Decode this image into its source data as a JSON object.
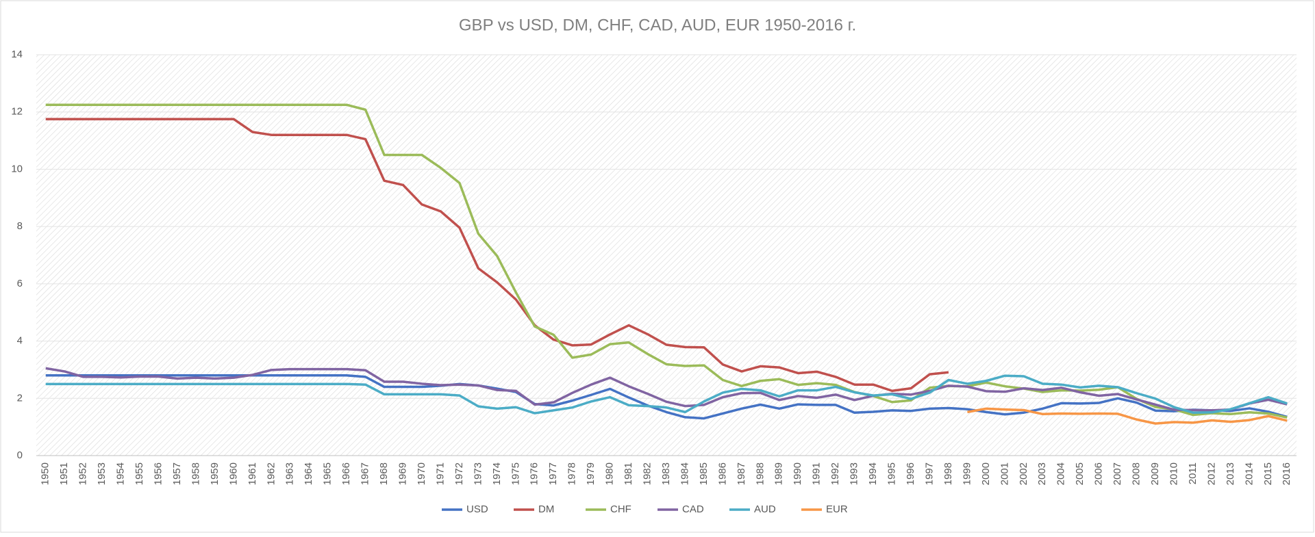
{
  "chart_data": {
    "type": "line",
    "title": "GBP vs USD, DM, CHF, CAD, AUD, EUR 1950-2016 г.",
    "categories": [
      "1950",
      "1951",
      "1952",
      "1953",
      "1954",
      "1955",
      "1956",
      "1957",
      "1958",
      "1959",
      "1960",
      "1961",
      "1962",
      "1963",
      "1964",
      "1965",
      "1966",
      "1967",
      "1968",
      "1969",
      "1970",
      "1971",
      "1972",
      "1973",
      "1974",
      "1975",
      "1976",
      "1977",
      "1978",
      "1979",
      "1980",
      "1981",
      "1982",
      "1983",
      "1984",
      "1985",
      "1986",
      "1987",
      "1988",
      "1989",
      "1990",
      "1991",
      "1992",
      "1993",
      "1994",
      "1995",
      "1996",
      "1997",
      "1998",
      "1999",
      "2000",
      "2001",
      "2002",
      "2003",
      "2004",
      "2005",
      "2006",
      "2007",
      "2008",
      "2009",
      "2010",
      "2011",
      "2012",
      "2013",
      "2014",
      "2015",
      "2016"
    ],
    "series": [
      {
        "name": "USD",
        "color": "#4472c4",
        "values": [
          2.8,
          2.8,
          2.8,
          2.8,
          2.8,
          2.8,
          2.8,
          2.8,
          2.8,
          2.8,
          2.8,
          2.8,
          2.8,
          2.8,
          2.8,
          2.8,
          2.8,
          2.75,
          2.4,
          2.4,
          2.4,
          2.44,
          2.5,
          2.45,
          2.34,
          2.22,
          1.8,
          1.75,
          1.92,
          2.12,
          2.33,
          2.03,
          1.75,
          1.52,
          1.34,
          1.3,
          1.47,
          1.64,
          1.78,
          1.64,
          1.79,
          1.77,
          1.77,
          1.5,
          1.53,
          1.58,
          1.56,
          1.64,
          1.66,
          1.62,
          1.52,
          1.44,
          1.5,
          1.64,
          1.83,
          1.82,
          1.84,
          2.0,
          1.85,
          1.57,
          1.55,
          1.6,
          1.58,
          1.56,
          1.65,
          1.53,
          1.35
        ]
      },
      {
        "name": "DM",
        "color": "#c0504d",
        "values": [
          11.75,
          11.75,
          11.75,
          11.75,
          11.75,
          11.75,
          11.75,
          11.75,
          11.75,
          11.75,
          11.75,
          11.3,
          11.2,
          11.2,
          11.2,
          11.2,
          11.2,
          11.05,
          9.6,
          9.45,
          8.77,
          8.53,
          7.96,
          6.54,
          6.05,
          5.45,
          4.55,
          4.05,
          3.85,
          3.88,
          4.23,
          4.55,
          4.24,
          3.87,
          3.79,
          3.78,
          3.18,
          2.94,
          3.12,
          3.08,
          2.88,
          2.93,
          2.75,
          2.48,
          2.48,
          2.26,
          2.35,
          2.84,
          2.91,
          null,
          null,
          null,
          null,
          null,
          null,
          null,
          null,
          null,
          null,
          null,
          null,
          null,
          null,
          null,
          null,
          null,
          null
        ]
      },
      {
        "name": "CHF",
        "color": "#9bbb59",
        "values": [
          12.25,
          12.25,
          12.25,
          12.25,
          12.25,
          12.25,
          12.25,
          12.25,
          12.25,
          12.25,
          12.25,
          12.25,
          12.25,
          12.25,
          12.25,
          12.25,
          12.25,
          12.08,
          10.5,
          10.5,
          10.5,
          10.05,
          9.52,
          7.75,
          6.97,
          5.7,
          4.51,
          4.22,
          3.42,
          3.53,
          3.89,
          3.95,
          3.55,
          3.19,
          3.13,
          3.15,
          2.64,
          2.43,
          2.61,
          2.67,
          2.47,
          2.53,
          2.47,
          2.22,
          2.08,
          1.87,
          1.93,
          2.37,
          2.43,
          2.42,
          2.55,
          2.42,
          2.34,
          2.22,
          2.28,
          2.27,
          2.3,
          2.39,
          1.98,
          1.7,
          1.61,
          1.42,
          1.48,
          1.45,
          1.51,
          1.47,
          1.33
        ]
      },
      {
        "name": "CAD",
        "color": "#8064a2",
        "values": [
          3.05,
          2.94,
          2.75,
          2.75,
          2.73,
          2.76,
          2.76,
          2.69,
          2.72,
          2.69,
          2.72,
          2.82,
          2.99,
          3.02,
          3.02,
          3.02,
          3.02,
          2.98,
          2.58,
          2.58,
          2.51,
          2.46,
          2.48,
          2.45,
          2.29,
          2.26,
          1.78,
          1.86,
          2.19,
          2.48,
          2.72,
          2.42,
          2.16,
          1.88,
          1.73,
          1.77,
          2.04,
          2.18,
          2.19,
          1.94,
          2.08,
          2.02,
          2.13,
          1.94,
          2.09,
          2.16,
          2.13,
          2.26,
          2.44,
          2.41,
          2.25,
          2.23,
          2.35,
          2.29,
          2.37,
          2.21,
          2.09,
          2.15,
          1.96,
          1.78,
          1.6,
          1.59,
          1.58,
          1.61,
          1.82,
          1.95,
          1.79
        ]
      },
      {
        "name": "AUD",
        "color": "#4bacc6",
        "values": [
          2.5,
          2.5,
          2.5,
          2.5,
          2.5,
          2.5,
          2.5,
          2.5,
          2.5,
          2.5,
          2.5,
          2.5,
          2.5,
          2.5,
          2.5,
          2.5,
          2.5,
          2.48,
          2.14,
          2.14,
          2.14,
          2.14,
          2.1,
          1.72,
          1.64,
          1.69,
          1.48,
          1.58,
          1.68,
          1.89,
          2.04,
          1.76,
          1.73,
          1.68,
          1.52,
          1.89,
          2.2,
          2.33,
          2.28,
          2.07,
          2.28,
          2.28,
          2.4,
          2.21,
          2.1,
          2.14,
          1.98,
          2.2,
          2.64,
          2.51,
          2.61,
          2.79,
          2.77,
          2.51,
          2.48,
          2.38,
          2.44,
          2.39,
          2.18,
          1.99,
          1.69,
          1.5,
          1.51,
          1.62,
          1.83,
          2.04,
          1.82
        ]
      },
      {
        "name": "EUR",
        "color": "#f79646",
        "values": [
          null,
          null,
          null,
          null,
          null,
          null,
          null,
          null,
          null,
          null,
          null,
          null,
          null,
          null,
          null,
          null,
          null,
          null,
          null,
          null,
          null,
          null,
          null,
          null,
          null,
          null,
          null,
          null,
          null,
          null,
          null,
          null,
          null,
          null,
          null,
          null,
          null,
          null,
          null,
          null,
          null,
          null,
          null,
          null,
          null,
          null,
          null,
          null,
          null,
          1.52,
          1.64,
          1.61,
          1.59,
          1.45,
          1.47,
          1.46,
          1.47,
          1.46,
          1.26,
          1.12,
          1.17,
          1.15,
          1.23,
          1.18,
          1.24,
          1.38,
          1.22
        ]
      }
    ],
    "ylim": [
      0,
      14
    ],
    "yticks": [
      0,
      2,
      4,
      6,
      8,
      10,
      12,
      14
    ],
    "grid": true,
    "legend": "bottom"
  }
}
